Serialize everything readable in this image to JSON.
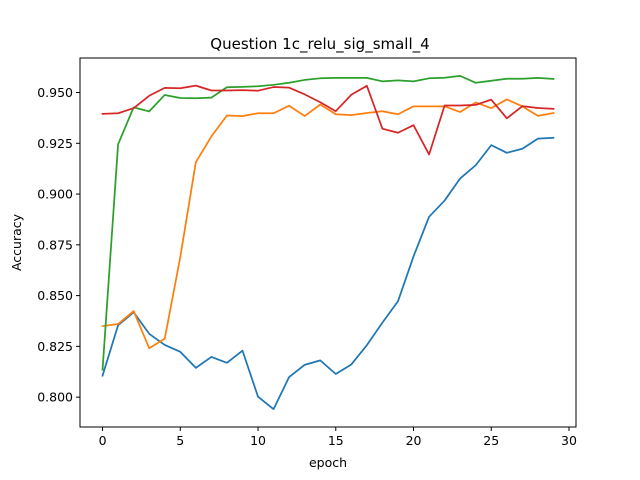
{
  "chart_data": {
    "type": "line",
    "title": "Question 1c_relu_sig_small_4",
    "xlabel": "epoch",
    "ylabel": "Accuracy",
    "xlim": [
      -1.45,
      30.45
    ],
    "ylim": [
      0.7853,
      0.967
    ],
    "xticks": [
      0,
      5,
      10,
      15,
      20,
      25,
      30
    ],
    "yticks": [
      0.8,
      0.825,
      0.85,
      0.875,
      0.9,
      0.925,
      0.95
    ],
    "xtick_labels": [
      "0",
      "5",
      "10",
      "15",
      "20",
      "25",
      "30"
    ],
    "ytick_labels": [
      "0.800",
      "0.825",
      "0.850",
      "0.875",
      "0.900",
      "0.925",
      "0.950"
    ],
    "grid": false,
    "x": [
      0,
      1,
      2,
      3,
      4,
      5,
      6,
      7,
      8,
      9,
      10,
      11,
      12,
      13,
      14,
      15,
      16,
      17,
      18,
      19,
      20,
      21,
      22,
      23,
      24,
      25,
      26,
      27,
      28,
      29
    ],
    "series": [
      {
        "color": "#1f77b4",
        "values": [
          0.8106,
          0.8354,
          0.8418,
          0.8312,
          0.8257,
          0.8223,
          0.8144,
          0.8198,
          0.8169,
          0.8229,
          0.8002,
          0.7941,
          0.8099,
          0.8159,
          0.8181,
          0.8114,
          0.8161,
          0.8256,
          0.8367,
          0.8472,
          0.8693,
          0.8888,
          0.8968,
          0.9077,
          0.9142,
          0.9241,
          0.9203,
          0.9223,
          0.9273,
          0.9277
        ]
      },
      {
        "color": "#ff7f0e",
        "values": [
          0.835,
          0.836,
          0.8424,
          0.8241,
          0.8288,
          0.869,
          0.9157,
          0.9284,
          0.9387,
          0.9384,
          0.9398,
          0.9398,
          0.9435,
          0.9384,
          0.9441,
          0.9393,
          0.9389,
          0.9399,
          0.9408,
          0.9393,
          0.9432,
          0.9432,
          0.9432,
          0.9404,
          0.9451,
          0.9423,
          0.9466,
          0.9432,
          0.9385,
          0.9399
        ]
      },
      {
        "color": "#2ca02c",
        "values": [
          0.8135,
          0.9245,
          0.9427,
          0.9407,
          0.9488,
          0.9473,
          0.9472,
          0.9475,
          0.9526,
          0.9528,
          0.9531,
          0.9538,
          0.9548,
          0.9562,
          0.957,
          0.9572,
          0.9572,
          0.9572,
          0.9555,
          0.956,
          0.9555,
          0.957,
          0.9573,
          0.9582,
          0.9548,
          0.9558,
          0.9568,
          0.9568,
          0.9572,
          0.9567
        ]
      },
      {
        "color": "#d62728",
        "values": [
          0.9395,
          0.9398,
          0.9423,
          0.9484,
          0.9523,
          0.9521,
          0.9534,
          0.951,
          0.951,
          0.9512,
          0.9509,
          0.9527,
          0.9524,
          0.9491,
          0.9452,
          0.9408,
          0.9489,
          0.9533,
          0.9322,
          0.9302,
          0.9339,
          0.9195,
          0.9436,
          0.9436,
          0.9439,
          0.9465,
          0.9373,
          0.9433,
          0.9424,
          0.942
        ]
      }
    ]
  }
}
